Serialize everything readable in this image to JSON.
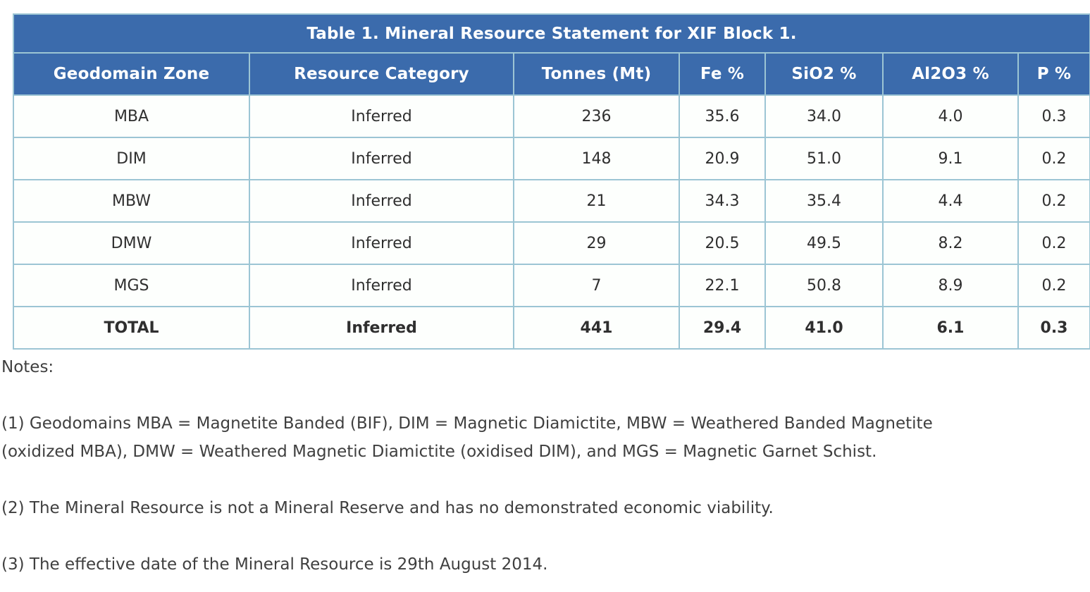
{
  "table": {
    "title": "Table 1. Mineral Resource Statement for XIF Block 1.",
    "columns": [
      "Geodomain Zone",
      "Resource Category",
      "Tonnes (Mt)",
      "Fe %",
      "SiO2 %",
      "Al2O3 %",
      "P %"
    ],
    "rows": [
      [
        "MBA",
        "Inferred",
        "236",
        "35.6",
        "34.0",
        "4.0",
        "0.3"
      ],
      [
        "DIM",
        "Inferred",
        "148",
        "20.9",
        "51.0",
        "9.1",
        "0.2"
      ],
      [
        "MBW",
        "Inferred",
        "21",
        "34.3",
        "35.4",
        "4.4",
        "0.2"
      ],
      [
        "DMW",
        "Inferred",
        "29",
        "20.5",
        "49.5",
        "8.2",
        "0.2"
      ],
      [
        "MGS",
        "Inferred",
        "7",
        "22.1",
        "50.8",
        "8.9",
        "0.2"
      ]
    ],
    "total_row": [
      "TOTAL",
      "Inferred",
      "441",
      "29.4",
      "41.0",
      "6.1",
      "0.3"
    ]
  },
  "notes": {
    "heading": "Notes:",
    "items": [
      "(1) Geodomains MBA = Magnetite Banded (BIF), DIM = Magnetic Diamictite, MBW = Weathered Banded Magnetite\n(oxidized MBA), DMW = Weathered Magnetic Diamictite (oxidised DIM), and MGS = Magnetic Garnet Schist.",
      "(2) The Mineral Resource is not a Mineral Reserve and has no demonstrated economic viability.",
      "(3) The effective date of the Mineral Resource is 29th August 2014."
    ]
  },
  "colors": {
    "header_bg": "#3b6bac",
    "border": "#9cc5d4",
    "cell_bg": "#fdfffd",
    "header_text": "#ffffff",
    "body_text": "#2f2f2f",
    "notes_text": "#3f3f3f",
    "page_bg": "#ffffff"
  }
}
